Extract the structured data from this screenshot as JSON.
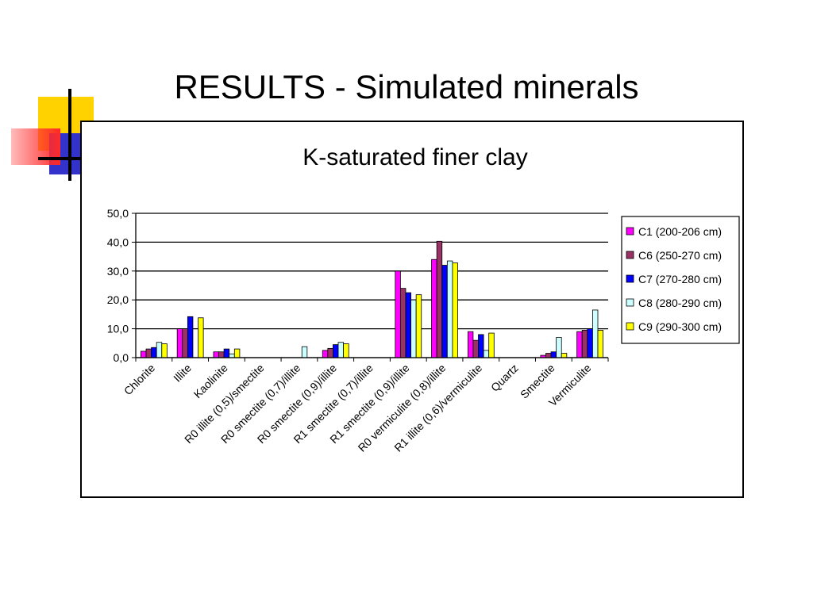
{
  "slide": {
    "title": "RESULTS - Simulated minerals"
  },
  "colors": {
    "decor_yellow": "#ffd200",
    "decor_blue": "#3333cc",
    "decor_red": "#ff3333",
    "decor_line": "#000000"
  },
  "chart_data": {
    "type": "bar",
    "title": "K-saturated finer clay",
    "xlabel": "",
    "ylabel": "",
    "ylim": [
      0,
      50
    ],
    "yticks": [
      "0,0",
      "10,0",
      "20,0",
      "30,0",
      "40,0",
      "50,0"
    ],
    "grid": true,
    "legend_position": "right",
    "categories": [
      "Chlorite",
      "Illite",
      "Kaolinite",
      "R0 illite (0,5)/smectite",
      "R0 smectite (0,7)/illite",
      "R0 smectite (0,9)/illite",
      "R1 smectite (0,7)/illite",
      "R1 smectite (0,9)/illite",
      "R0 vermiculite (0,8)/illite",
      "R1 illite (0,6)/vermiculite",
      "Quartz",
      "Smectite",
      "Vermiculite"
    ],
    "series": [
      {
        "name": "C1 (200-206 cm)",
        "color": "#ff00ff",
        "values": [
          2.2,
          10.0,
          2.0,
          0,
          0,
          2.5,
          0,
          30.0,
          34.0,
          9.0,
          0,
          0.8,
          9.0
        ]
      },
      {
        "name": "C6 (250-270 cm)",
        "color": "#993366",
        "values": [
          3.0,
          10.0,
          2.0,
          0,
          0,
          3.2,
          0,
          24.0,
          40.3,
          6.0,
          0,
          1.5,
          9.5
        ]
      },
      {
        "name": "C7 (270-280 cm)",
        "color": "#0000ff",
        "values": [
          3.5,
          14.2,
          3.0,
          0,
          0,
          4.5,
          0,
          22.5,
          32.0,
          8.0,
          0,
          2.0,
          10.0
        ]
      },
      {
        "name": "C8 (280-290 cm)",
        "color": "#ccffff",
        "values": [
          5.3,
          0,
          1.3,
          0,
          3.8,
          5.3,
          0,
          20.0,
          33.5,
          2.5,
          0,
          7.0,
          16.5
        ]
      },
      {
        "name": "C9 (290-300 cm)",
        "color": "#ffff00",
        "values": [
          4.8,
          13.8,
          3.0,
          0,
          0,
          4.8,
          0,
          21.8,
          32.8,
          8.5,
          0,
          1.5,
          9.5
        ]
      }
    ]
  }
}
